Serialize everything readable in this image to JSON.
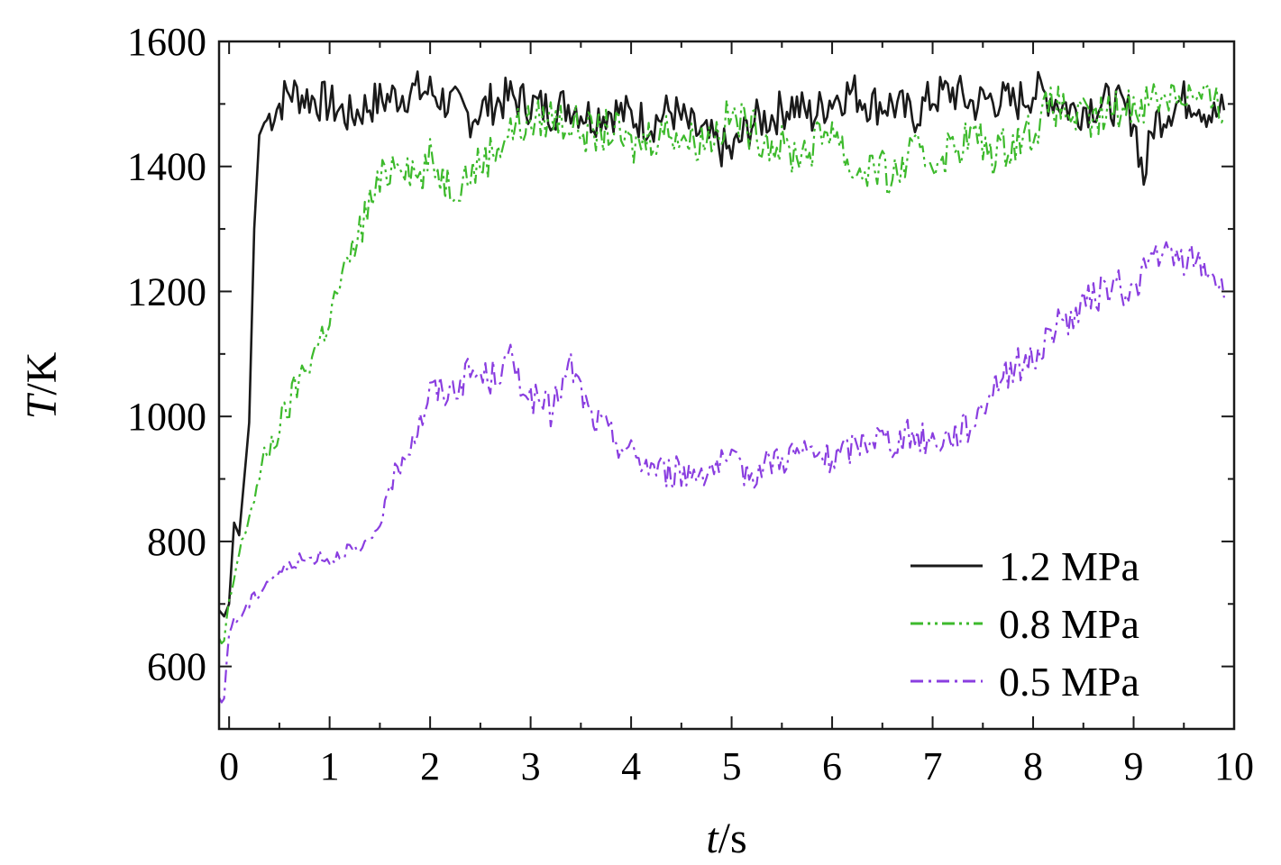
{
  "chart_data": {
    "type": "line",
    "title": "",
    "xlabel": {
      "var": "t",
      "unit": "/s"
    },
    "ylabel": {
      "var": "T",
      "unit": "/K"
    },
    "xlim": [
      -0.1,
      10
    ],
    "ylim": [
      500,
      1600
    ],
    "xticks": [
      0,
      1,
      2,
      3,
      4,
      5,
      6,
      7,
      8,
      9,
      10
    ],
    "yticks": [
      600,
      800,
      1000,
      1200,
      1400,
      1600
    ],
    "grid": false,
    "legend_position": "bottom-right",
    "series": [
      {
        "name": "1.2 MPa",
        "color": "#1a1a1a",
        "dash": "solid",
        "x": [
          -0.1,
          -0.05,
          0,
          0.05,
          0.1,
          0.15,
          0.2,
          0.25,
          0.3,
          0.35,
          0.4,
          0.5,
          0.6,
          0.8,
          1.0,
          1.2,
          1.4,
          1.6,
          1.8,
          2.0,
          2.2,
          2.4,
          2.6,
          2.8,
          3.0,
          3.2,
          3.4,
          3.6,
          3.8,
          4.0,
          4.2,
          4.4,
          4.6,
          4.8,
          5.0,
          5.2,
          5.4,
          5.6,
          5.8,
          6.0,
          6.2,
          6.4,
          6.6,
          6.8,
          7.0,
          7.2,
          7.4,
          7.6,
          7.8,
          8.0,
          8.2,
          8.4,
          8.6,
          8.8,
          9.0,
          9.1,
          9.2,
          9.4,
          9.6,
          9.8,
          9.9
        ],
        "y": [
          690,
          680,
          700,
          830,
          810,
          900,
          990,
          1300,
          1450,
          1470,
          1480,
          1500,
          1520,
          1510,
          1500,
          1480,
          1500,
          1510,
          1520,
          1520,
          1500,
          1480,
          1500,
          1510,
          1500,
          1490,
          1500,
          1480,
          1490,
          1480,
          1470,
          1490,
          1460,
          1440,
          1420,
          1470,
          1480,
          1500,
          1480,
          1510,
          1520,
          1500,
          1500,
          1480,
          1510,
          1520,
          1500,
          1510,
          1500,
          1520,
          1510,
          1490,
          1500,
          1500,
          1480,
          1380,
          1470,
          1500,
          1510,
          1480,
          1490
        ]
      },
      {
        "name": "0.8 MPa",
        "color": "#3dba2c",
        "dash": "dashdotdot",
        "x": [
          -0.1,
          -0.05,
          0,
          0.1,
          0.2,
          0.3,
          0.4,
          0.5,
          0.6,
          0.7,
          0.8,
          0.9,
          1.0,
          1.1,
          1.2,
          1.3,
          1.4,
          1.5,
          1.6,
          1.7,
          1.8,
          1.9,
          2.0,
          2.2,
          2.4,
          2.6,
          2.8,
          3.0,
          3.2,
          3.4,
          3.6,
          3.8,
          4.0,
          4.2,
          4.4,
          4.6,
          4.8,
          5.0,
          5.2,
          5.4,
          5.6,
          5.8,
          6.0,
          6.2,
          6.4,
          6.6,
          6.8,
          7.0,
          7.2,
          7.4,
          7.6,
          7.8,
          8.0,
          8.2,
          8.4,
          8.6,
          8.8,
          9.0,
          9.2,
          9.4,
          9.6,
          9.8,
          9.9
        ],
        "y": [
          640,
          635,
          700,
          780,
          840,
          900,
          950,
          980,
          1020,
          1060,
          1090,
          1120,
          1160,
          1210,
          1250,
          1300,
          1340,
          1370,
          1400,
          1420,
          1400,
          1380,
          1410,
          1370,
          1390,
          1420,
          1460,
          1470,
          1480,
          1470,
          1450,
          1460,
          1430,
          1450,
          1460,
          1440,
          1450,
          1480,
          1460,
          1440,
          1420,
          1430,
          1470,
          1390,
          1400,
          1380,
          1420,
          1410,
          1430,
          1450,
          1420,
          1440,
          1460,
          1500,
          1480,
          1470,
          1490,
          1500,
          1510,
          1520,
          1510,
          1500,
          1480
        ]
      },
      {
        "name": "0.5 MPa",
        "color": "#8a3ee0",
        "dash": "dashdot",
        "x": [
          -0.1,
          -0.05,
          0,
          0.1,
          0.2,
          0.3,
          0.4,
          0.5,
          0.6,
          0.7,
          0.8,
          0.9,
          1.0,
          1.1,
          1.2,
          1.3,
          1.4,
          1.5,
          1.6,
          1.7,
          1.8,
          1.9,
          2.0,
          2.2,
          2.4,
          2.6,
          2.8,
          3.0,
          3.2,
          3.4,
          3.6,
          3.8,
          4.0,
          4.2,
          4.4,
          4.6,
          4.8,
          5.0,
          5.2,
          5.4,
          5.6,
          5.8,
          6.0,
          6.2,
          6.4,
          6.6,
          6.8,
          7.0,
          7.2,
          7.4,
          7.6,
          7.8,
          8.0,
          8.2,
          8.4,
          8.6,
          8.8,
          9.0,
          9.2,
          9.4,
          9.6,
          9.8,
          9.9
        ],
        "y": [
          540,
          550,
          660,
          680,
          700,
          720,
          740,
          750,
          760,
          770,
          770,
          780,
          770,
          780,
          790,
          780,
          800,
          830,
          880,
          930,
          960,
          990,
          1040,
          1040,
          1070,
          1060,
          1090,
          1030,
          1010,
          1080,
          1000,
          970,
          940,
          920,
          910,
          910,
          920,
          920,
          910,
          930,
          940,
          940,
          930,
          950,
          970,
          960,
          970,
          960,
          970,
          990,
          1050,
          1080,
          1090,
          1140,
          1160,
          1190,
          1210,
          1200,
          1260,
          1250,
          1250,
          1230,
          1190
        ]
      }
    ]
  }
}
